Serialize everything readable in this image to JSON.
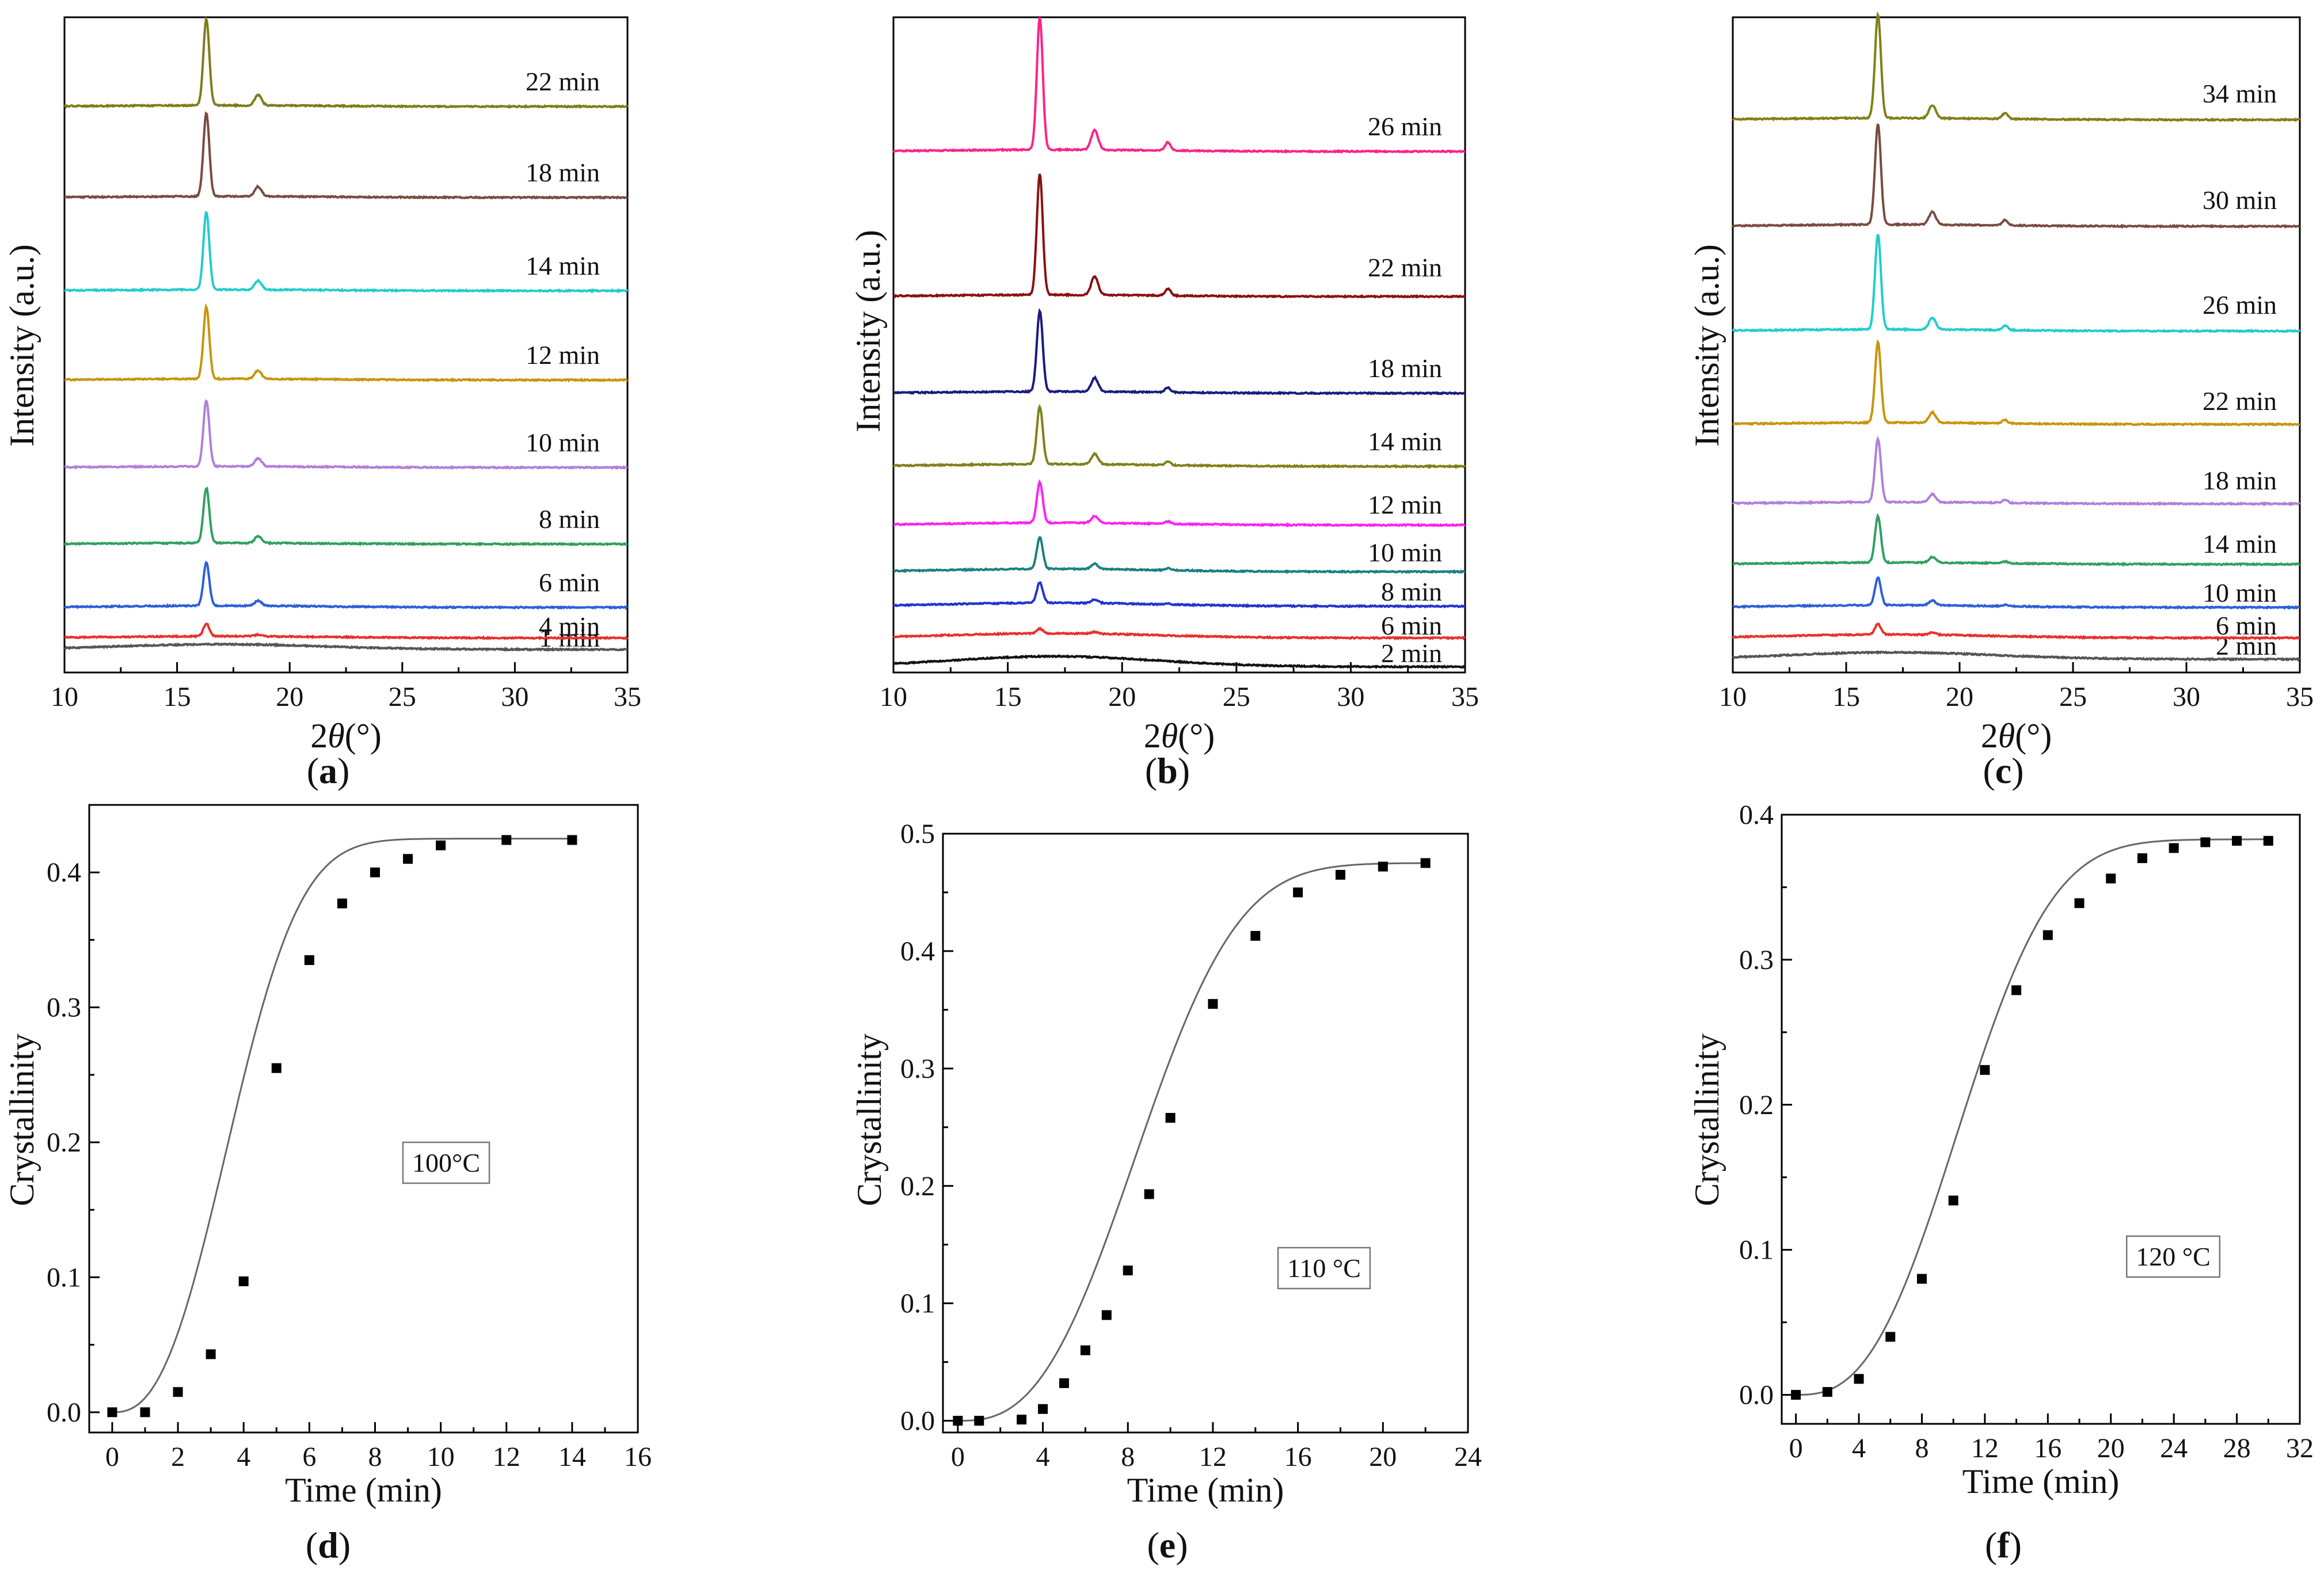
{
  "chart_data": [
    {
      "id": "a",
      "type": "line",
      "subtype": "xrd-stacked",
      "panel_label": "a",
      "xlabel_italic": "θ",
      "xlabel_prefix": "2",
      "xlabel_suffix": "(°)",
      "ylabel": "Intensity (a.u.)",
      "xlim": [
        10,
        35
      ],
      "xticks": [
        10,
        15,
        20,
        25,
        30,
        35
      ],
      "peaks": [
        16.3,
        18.6,
        21.9
      ],
      "series": [
        {
          "name": "1 min",
          "color": "#555555",
          "heights": [
            0,
            0,
            0
          ],
          "amorphous": 9
        },
        {
          "name": "4 min",
          "color": "#e8302c",
          "heights": [
            22,
            3,
            0
          ],
          "amorphous": 3
        },
        {
          "name": "6 min",
          "color": "#2b5fd9",
          "heights": [
            75,
            9,
            0
          ],
          "amorphous": 3
        },
        {
          "name": "8 min",
          "color": "#2fa060",
          "heights": [
            95,
            12,
            0
          ],
          "amorphous": 2
        },
        {
          "name": "10 min",
          "color": "#b07fdb",
          "heights": [
            115,
            14,
            0
          ],
          "amorphous": 2
        },
        {
          "name": "12 min",
          "color": "#c8950a",
          "heights": [
            125,
            15,
            0
          ],
          "amorphous": 2
        },
        {
          "name": "14 min",
          "color": "#22cccc",
          "heights": [
            135,
            16,
            0
          ],
          "amorphous": 2
        },
        {
          "name": "18 min",
          "color": "#7a4a42",
          "heights": [
            145,
            17,
            0
          ],
          "amorphous": 2
        },
        {
          "name": "22 min",
          "color": "#7d7d18",
          "heights": [
            150,
            18,
            0
          ],
          "amorphous": 2
        }
      ]
    },
    {
      "id": "b",
      "type": "line",
      "subtype": "xrd-stacked",
      "panel_label": "b",
      "xlabel_italic": "θ",
      "xlabel_prefix": "2",
      "xlabel_suffix": "(°)",
      "ylabel": "Intensity (a.u.)",
      "xlim": [
        10,
        35
      ],
      "xticks": [
        10,
        15,
        20,
        25,
        30,
        35
      ],
      "peaks": [
        16.4,
        18.8,
        22.0
      ],
      "series": [
        {
          "name": "2 min",
          "color": "#111111",
          "heights": [
            0,
            0,
            0
          ],
          "amorphous": 18
        },
        {
          "name": "6 min",
          "color": "#e8302c",
          "heights": [
            8,
            3,
            0
          ],
          "amorphous": 8
        },
        {
          "name": "8 min",
          "color": "#2233cc",
          "heights": [
            35,
            6,
            2
          ],
          "amorphous": 6
        },
        {
          "name": "10 min",
          "color": "#1a7f7f",
          "heights": [
            55,
            9,
            3
          ],
          "amorphous": 5
        },
        {
          "name": "12 min",
          "color": "#ff22ee",
          "heights": [
            70,
            12,
            4
          ],
          "amorphous": 4
        },
        {
          "name": "14 min",
          "color": "#808018",
          "heights": [
            100,
            18,
            6
          ],
          "amorphous": 4
        },
        {
          "name": "18 min",
          "color": "#1a1a80",
          "heights": [
            140,
            24,
            8
          ],
          "amorphous": 3
        },
        {
          "name": "22 min",
          "color": "#8a1010",
          "heights": [
            210,
            32,
            12
          ],
          "amorphous": 3
        },
        {
          "name": "26 min",
          "color": "#ff2288",
          "heights": [
            230,
            34,
            14
          ],
          "amorphous": 3
        }
      ]
    },
    {
      "id": "c",
      "type": "line",
      "subtype": "xrd-stacked",
      "panel_label": "c",
      "xlabel_italic": "θ",
      "xlabel_prefix": "2",
      "xlabel_suffix": "(°)",
      "ylabel": "Intensity (a.u.)",
      "xlim": [
        10,
        35
      ],
      "xticks": [
        10,
        15,
        20,
        25,
        30,
        35
      ],
      "peaks": [
        16.4,
        18.8,
        22.0
      ],
      "series": [
        {
          "name": "2 min",
          "color": "#555555",
          "heights": [
            0,
            0,
            0
          ],
          "amorphous": 12
        },
        {
          "name": "6 min",
          "color": "#e8302c",
          "heights": [
            18,
            4,
            0
          ],
          "amorphous": 6
        },
        {
          "name": "10 min",
          "color": "#2b5fd9",
          "heights": [
            48,
            8,
            2
          ],
          "amorphous": 4
        },
        {
          "name": "14 min",
          "color": "#2fa060",
          "heights": [
            80,
            10,
            3
          ],
          "amorphous": 3
        },
        {
          "name": "18 min",
          "color": "#b07fdb",
          "heights": [
            110,
            14,
            5
          ],
          "amorphous": 3
        },
        {
          "name": "22 min",
          "color": "#c8950a",
          "heights": [
            140,
            18,
            6
          ],
          "amorphous": 3
        },
        {
          "name": "26 min",
          "color": "#22cccc",
          "heights": [
            165,
            20,
            8
          ],
          "amorphous": 3
        },
        {
          "name": "30 min",
          "color": "#7a4a42",
          "heights": [
            175,
            22,
            9
          ],
          "amorphous": 3
        },
        {
          "name": "34 min",
          "color": "#808018",
          "heights": [
            180,
            22,
            10
          ],
          "amorphous": 3
        }
      ]
    },
    {
      "id": "d",
      "type": "scatter",
      "panel_label": "d",
      "xlabel": "Time (min)",
      "ylabel": "Crystallinity",
      "xlim": [
        -0.7,
        16
      ],
      "ylim": [
        -0.015,
        0.45
      ],
      "xticks": [
        0,
        2,
        4,
        6,
        8,
        10,
        12,
        14,
        16
      ],
      "yticks": [
        0.0,
        0.1,
        0.2,
        0.3,
        0.4
      ],
      "ytick_labels": [
        "0.0",
        "0.1",
        "0.2",
        "0.3",
        "0.4"
      ],
      "annotation": "100°C",
      "fit": {
        "A": 0.425,
        "k": 0.0255,
        "n": 2.55
      },
      "x": [
        0,
        1,
        2,
        3,
        4,
        5,
        6,
        7,
        8,
        9,
        10,
        12,
        14
      ],
      "y": [
        0.0,
        0.0,
        0.015,
        0.043,
        0.097,
        0.255,
        0.335,
        0.377,
        0.4,
        0.41,
        0.42,
        0.424,
        0.424
      ]
    },
    {
      "id": "e",
      "type": "scatter",
      "panel_label": "e",
      "xlabel": "Time (min)",
      "ylabel": "Crystallinity",
      "xlim": [
        -0.7,
        24
      ],
      "ylim": [
        -0.01,
        0.5
      ],
      "xticks": [
        0,
        4,
        8,
        12,
        16,
        20,
        24
      ],
      "yticks": [
        0.0,
        0.1,
        0.2,
        0.3,
        0.4,
        0.5
      ],
      "ytick_labels": [
        "0.0",
        "0.1",
        "0.2",
        "0.3",
        "0.4",
        "0.5"
      ],
      "annotation": "110 °C",
      "fit": {
        "A": 0.475,
        "k": 0.00195,
        "n": 2.73
      },
      "x": [
        0,
        1,
        3,
        4,
        5,
        6,
        7,
        8,
        9,
        10,
        12,
        14,
        16,
        18,
        20,
        22
      ],
      "y": [
        0.0,
        0.0,
        0.001,
        0.01,
        0.032,
        0.06,
        0.09,
        0.128,
        0.193,
        0.258,
        0.355,
        0.413,
        0.45,
        0.465,
        0.472,
        0.475
      ]
    },
    {
      "id": "f",
      "type": "scatter",
      "panel_label": "f",
      "xlabel": "Time (min)",
      "ylabel": "Crystallinity",
      "xlim": [
        -0.9,
        32
      ],
      "ylim": [
        -0.02,
        0.4
      ],
      "xticks": [
        0,
        4,
        8,
        12,
        16,
        20,
        24,
        28,
        32
      ],
      "yticks": [
        0.0,
        0.1,
        0.2,
        0.3,
        0.4
      ],
      "ytick_labels": [
        "0.0",
        "0.1",
        "0.2",
        "0.3",
        "0.4"
      ],
      "annotation": "120 °C",
      "fit": {
        "A": 0.383,
        "k": 0.00119,
        "n": 2.7
      },
      "x": [
        0,
        2,
        4,
        6,
        8,
        10,
        12,
        14,
        16,
        18,
        20,
        22,
        24,
        26,
        28,
        30
      ],
      "y": [
        0.0,
        0.002,
        0.011,
        0.04,
        0.08,
        0.134,
        0.224,
        0.279,
        0.317,
        0.339,
        0.356,
        0.37,
        0.377,
        0.381,
        0.382,
        0.382
      ]
    }
  ]
}
